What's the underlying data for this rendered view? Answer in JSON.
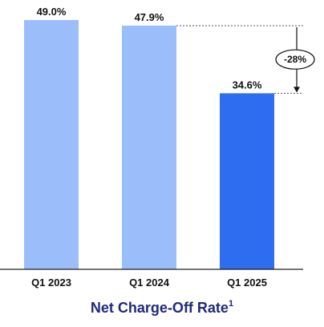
{
  "chart_data": {
    "type": "bar",
    "title": "Net Charge-Off Rate",
    "title_superscript": "1",
    "categories": [
      "Q1 2023",
      "Q1 2024",
      "Q1 2025"
    ],
    "values": [
      49.0,
      47.9,
      34.6
    ],
    "value_labels": [
      "49.0%",
      "47.9%",
      "34.6%"
    ],
    "unit": "%",
    "colors": [
      "#9bbdf9",
      "#9bbdf9",
      "#2e6cf0"
    ],
    "ylim": [
      0,
      49.0
    ],
    "grid": false,
    "annotation": {
      "text": "-28%",
      "from_category": "Q1 2024",
      "to_category": "Q1 2025"
    }
  },
  "colors": {
    "title": "#1f2a78",
    "baseline": "#222222",
    "dotted_guide": "#555555"
  }
}
